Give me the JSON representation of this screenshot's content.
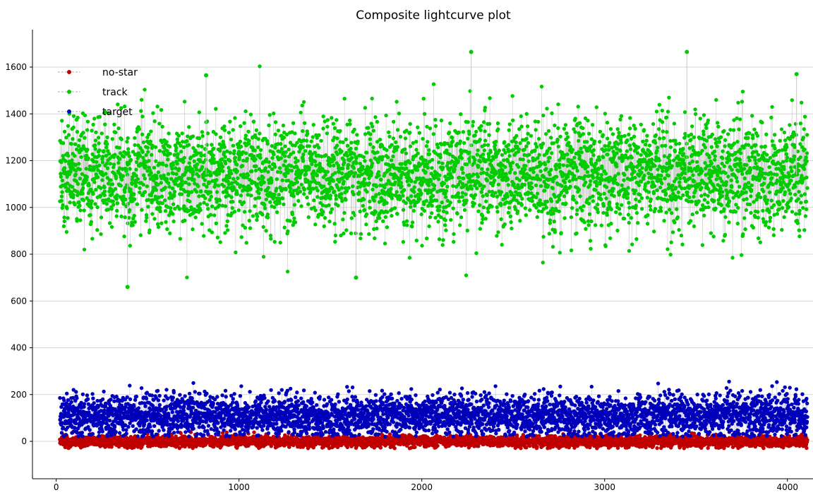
{
  "chart_data": {
    "type": "scatter",
    "title": "Composite lightcurve plot",
    "xlabel": "",
    "ylabel": "",
    "xlim": [
      -130,
      4140
    ],
    "ylim": [
      -160,
      1760
    ],
    "x_ticks": [
      0,
      1000,
      2000,
      3000,
      4000
    ],
    "y_ticks": [
      0,
      200,
      400,
      600,
      800,
      1000,
      1200,
      1400,
      1600
    ],
    "grid": "horizontal",
    "legend_position": "top-left",
    "connect_points": true,
    "n_points_per_series": 4100,
    "series": [
      {
        "name": "no-star",
        "color": "#c00000",
        "line_color": "#f1c4c4",
        "x_range": [
          20,
          4110
        ],
        "mean": 0,
        "spread": 12,
        "min": -30,
        "max": 40
      },
      {
        "name": "track",
        "color": "#00cc00",
        "line_color": "#c8c8c8",
        "x_range": [
          20,
          4110
        ],
        "mean": 1140,
        "spread": 120,
        "min": 660,
        "max": 1670,
        "notable_points": [
          {
            "x": 390,
            "y": 660
          },
          {
            "x": 1640,
            "y": 700
          },
          {
            "x": 2270,
            "y": 1665
          },
          {
            "x": 3450,
            "y": 1665
          },
          {
            "x": 820,
            "y": 1565
          },
          {
            "x": 4050,
            "y": 1570
          }
        ]
      },
      {
        "name": "target",
        "color": "#0000bb",
        "line_color": "#c4c4ee",
        "x_range": [
          20,
          4110
        ],
        "mean": 110,
        "spread": 45,
        "min": 20,
        "max": 260
      }
    ]
  }
}
